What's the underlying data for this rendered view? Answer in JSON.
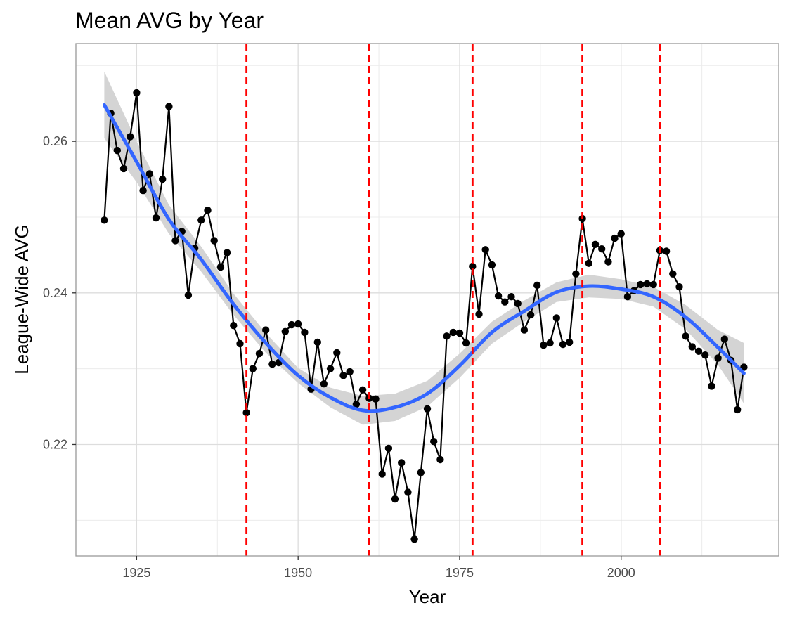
{
  "chart_data": {
    "type": "line",
    "title": "Mean AVG by Year",
    "xlabel": "Year",
    "ylabel": "League-Wide AVG",
    "xlim": [
      1915.6,
      2024.4
    ],
    "ylim": [
      0.2053,
      0.2729
    ],
    "xticks": [
      1925,
      1950,
      1975,
      2000
    ],
    "xtick_labels": [
      "1925",
      "1950",
      "1975",
      "2000"
    ],
    "yticks": [
      0.22,
      0.24,
      0.26
    ],
    "ytick_labels": [
      "0.22",
      "0.24",
      "0.26"
    ],
    "grid": true,
    "series": [
      {
        "x": [
          1920,
          1921,
          1922,
          1923,
          1924,
          1925,
          1926,
          1927,
          1928,
          1929,
          1930,
          1931,
          1932,
          1933,
          1934,
          1935,
          1936,
          1937,
          1938,
          1939,
          1940,
          1941,
          1942,
          1943,
          1944,
          1945,
          1946,
          1947,
          1948,
          1949,
          1950,
          1951,
          1952,
          1953,
          1954,
          1955,
          1956,
          1957,
          1958,
          1959,
          1960,
          1961,
          1962,
          1963,
          1964,
          1965,
          1966,
          1967,
          1968,
          1969,
          1970,
          1971,
          1972,
          1973,
          1974,
          1975,
          1976,
          1977,
          1978,
          1979,
          1980,
          1981,
          1982,
          1983,
          1984,
          1985,
          1986,
          1987,
          1988,
          1989,
          1990,
          1991,
          1992,
          1993,
          1994,
          1995,
          1996,
          1997,
          1998,
          1999,
          2000,
          2001,
          2002,
          2003,
          2004,
          2005,
          2006,
          2007,
          2008,
          2009,
          2010,
          2011,
          2012,
          2013,
          2014,
          2015,
          2016,
          2017,
          2018,
          2019
        ],
        "values": [
          0.2496,
          0.2637,
          0.2588,
          0.2564,
          0.2606,
          0.2664,
          0.2535,
          0.2557,
          0.2499,
          0.255,
          0.2646,
          0.2469,
          0.2481,
          0.2397,
          0.2459,
          0.2496,
          0.2509,
          0.2469,
          0.2434,
          0.2453,
          0.2357,
          0.2333,
          0.2242,
          0.23,
          0.232,
          0.2351,
          0.2306,
          0.2308,
          0.2349,
          0.2358,
          0.2359,
          0.2348,
          0.2273,
          0.2335,
          0.228,
          0.23,
          0.2321,
          0.2291,
          0.2296,
          0.2253,
          0.2272,
          0.2261,
          0.226,
          0.2161,
          0.2195,
          0.2128,
          0.2176,
          0.2137,
          0.2075,
          0.2163,
          0.2247,
          0.2204,
          0.218,
          0.2343,
          0.2348,
          0.2347,
          0.2334,
          0.2435,
          0.2372,
          0.2457,
          0.2437,
          0.2396,
          0.2388,
          0.2395,
          0.2386,
          0.2351,
          0.2371,
          0.241,
          0.2331,
          0.2334,
          0.2367,
          0.2332,
          0.2335,
          0.2425,
          0.2498,
          0.2439,
          0.2464,
          0.2458,
          0.2441,
          0.2472,
          0.2478,
          0.2395,
          0.2403,
          0.2411,
          0.2412,
          0.2411,
          0.2456,
          0.2455,
          0.2425,
          0.2408,
          0.2343,
          0.2329,
          0.2323,
          0.2318,
          0.2277,
          0.2314,
          0.2339,
          0.2311,
          0.2246,
          0.2302
        ]
      }
    ],
    "smooth": {
      "x": [
        1920,
        1925,
        1930,
        1935,
        1940,
        1945,
        1950,
        1955,
        1960,
        1965,
        1970,
        1975,
        1980,
        1985,
        1990,
        1995,
        2000,
        2005,
        2010,
        2015,
        2019
      ],
      "values": [
        0.2648,
        0.2573,
        0.2497,
        0.2444,
        0.2385,
        0.2334,
        0.2291,
        0.2262,
        0.2245,
        0.2249,
        0.2267,
        0.2304,
        0.2348,
        0.2376,
        0.2401,
        0.2409,
        0.2405,
        0.2395,
        0.2368,
        0.2328,
        0.2294
      ],
      "ci_lower": [
        0.2604,
        0.2546,
        0.2478,
        0.2428,
        0.2371,
        0.2321,
        0.2281,
        0.2249,
        0.2226,
        0.2231,
        0.225,
        0.2288,
        0.2333,
        0.2362,
        0.2388,
        0.2394,
        0.2392,
        0.2382,
        0.2352,
        0.2305,
        0.2254
      ],
      "ci_upper": [
        0.2692,
        0.26,
        0.2516,
        0.2461,
        0.2399,
        0.2347,
        0.2301,
        0.2275,
        0.2264,
        0.2267,
        0.2284,
        0.232,
        0.2362,
        0.239,
        0.2414,
        0.2424,
        0.2418,
        0.2408,
        0.2384,
        0.2351,
        0.2334
      ]
    },
    "vlines": [
      1942,
      1961,
      1977,
      1994,
      2006
    ],
    "colors": {
      "points": "#000000",
      "line": "#000000",
      "smooth": "#3366ff",
      "ribbon": "#d4d4d4",
      "vline": "#ff0000",
      "grid": "#dddddd",
      "frame": "#999999"
    }
  }
}
